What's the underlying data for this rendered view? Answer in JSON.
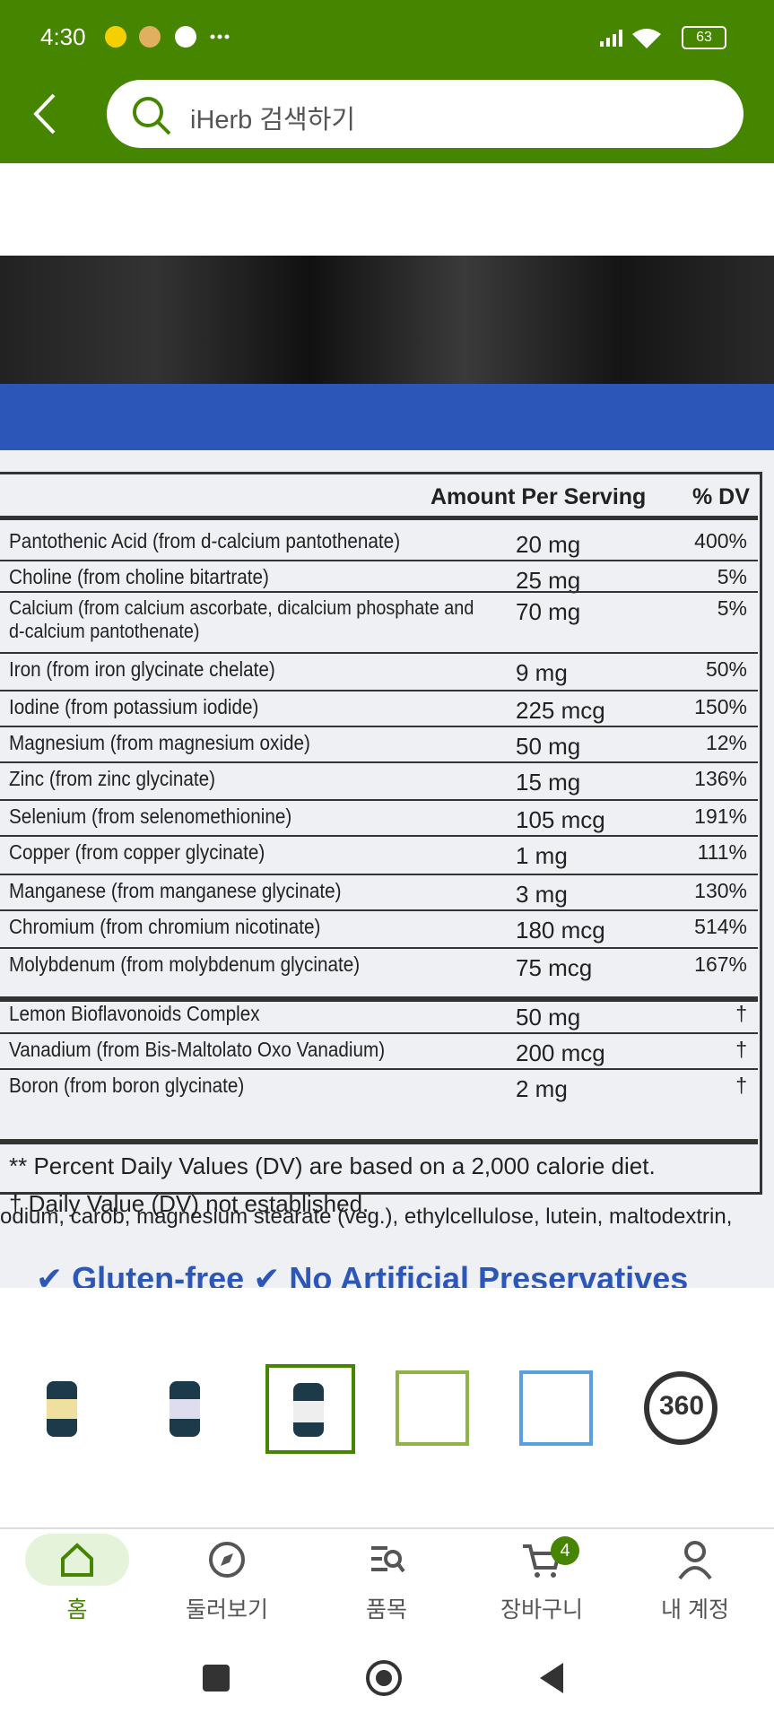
{
  "status_bar": {
    "time": "4:30",
    "battery": "63"
  },
  "search": {
    "placeholder": "iHerb 검색하기"
  },
  "label": {
    "header": {
      "amount": "Amount Per Serving",
      "dv": "% DV"
    },
    "rows": [
      [
        "Pantothenic Acid (from d-calcium pantothenate)",
        "20 mg",
        "400%"
      ],
      [
        "Choline (from choline bitartrate)",
        "25 mg",
        "5%"
      ],
      [
        "Calcium (from calcium ascorbate, dicalcium phosphate and d-calcium pantothenate)",
        "70 mg",
        "5%"
      ],
      [
        "Iron (from iron glycinate chelate)",
        "9 mg",
        "50%"
      ],
      [
        "Iodine (from potassium iodide)",
        "225 mcg",
        "150%"
      ],
      [
        "Magnesium (from magnesium oxide)",
        "50 mg",
        "12%"
      ],
      [
        "Zinc (from zinc glycinate)",
        "15 mg",
        "136%"
      ],
      [
        "Selenium (from selenomethionine)",
        "105 mcg",
        "191%"
      ],
      [
        "Copper (from copper glycinate)",
        "1 mg",
        "111%"
      ],
      [
        "Manganese (from manganese glycinate)",
        "3 mg",
        "130%"
      ],
      [
        "Chromium (from chromium nicotinate)",
        "180 mcg",
        "514%"
      ],
      [
        "Molybdenum (from molybdenum glycinate)",
        "75 mcg",
        "167%"
      ],
      [
        "Lemon Bioflavonoids Complex",
        "50 mg",
        "†"
      ],
      [
        "Vanadium (from Bis-Maltolato Oxo Vanadium)",
        "200 mcg",
        "†"
      ],
      [
        "Boron (from boron glycinate)",
        "2 mg",
        "†"
      ]
    ],
    "footnotes": [
      "** Percent Daily Values (DV) are based on a 2,000 calorie diet.",
      "† Daily Value (DV) not established."
    ],
    "ingredients": "odium, carob, magnesium stearate (veg.), ethylcellulose, lutein, maltodextrin,",
    "banner": "✔ Gluten-free ✔ No Artificial Preservatives"
  },
  "thumbnails": {
    "view360": "360"
  },
  "nav": {
    "items": [
      "홈",
      "둘러보기",
      "품목",
      "장바구니",
      "내 계정"
    ],
    "cart_badge": "4"
  }
}
